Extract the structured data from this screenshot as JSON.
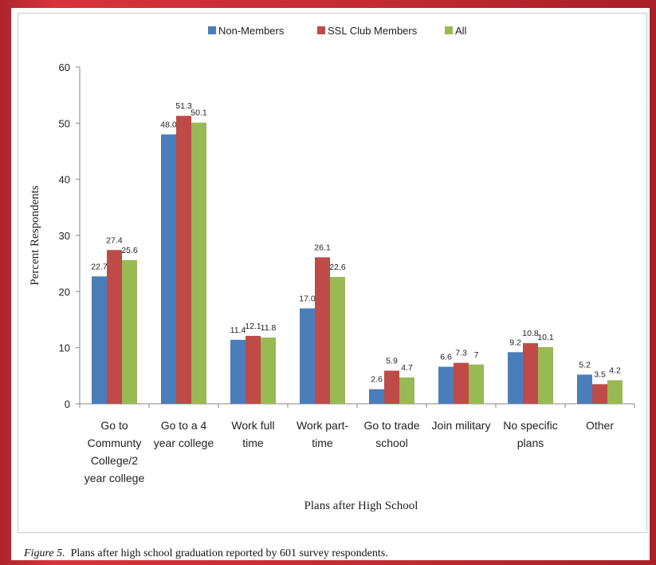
{
  "chart_data": {
    "type": "bar",
    "categories": [
      [
        "Go to",
        "Communty",
        "College/2",
        "year college"
      ],
      [
        "Go to a 4",
        "year college"
      ],
      [
        "Work full",
        "time"
      ],
      [
        "Work part-",
        "time"
      ],
      [
        "Go to trade",
        "school"
      ],
      [
        "Join military"
      ],
      [
        "No specific",
        "plans"
      ],
      [
        "Other"
      ]
    ],
    "series": [
      {
        "name": "Non-Members",
        "color": "#4a7ebb",
        "values": [
          22.7,
          48.0,
          11.4,
          17.0,
          2.6,
          6.6,
          9.2,
          5.2
        ],
        "labels": [
          "22.7",
          "48.0",
          "11.4",
          "17.0",
          "2.6",
          "6.6",
          "9.2",
          "5.2"
        ]
      },
      {
        "name": "SSL Club Members",
        "color": "#be4b48",
        "values": [
          27.4,
          51.3,
          12.1,
          26.1,
          5.9,
          7.3,
          10.8,
          3.5
        ],
        "labels": [
          "27.4",
          "51.3",
          "12.1",
          "26.1",
          "5.9",
          "7.3",
          "10.8",
          "3.5"
        ]
      },
      {
        "name": "All",
        "color": "#98b954",
        "values": [
          25.6,
          50.1,
          11.8,
          22.6,
          4.7,
          7.0,
          10.1,
          4.2
        ],
        "labels": [
          "25.6",
          "50.1",
          "11.8",
          "22.6",
          "4.7",
          "7",
          "10.1",
          "4.2"
        ]
      }
    ],
    "ylim": [
      0,
      60
    ],
    "yticks": [
      "0",
      "10",
      "20",
      "30",
      "40",
      "50",
      "60"
    ],
    "ylabel": "Percent Respondents",
    "xlabel": "Plans after High School",
    "legend_position": "top",
    "grid": false
  },
  "caption": {
    "figure_label": "Figure 5.",
    "text": "Plans after high school graduation reported by 601 survey respondents."
  }
}
